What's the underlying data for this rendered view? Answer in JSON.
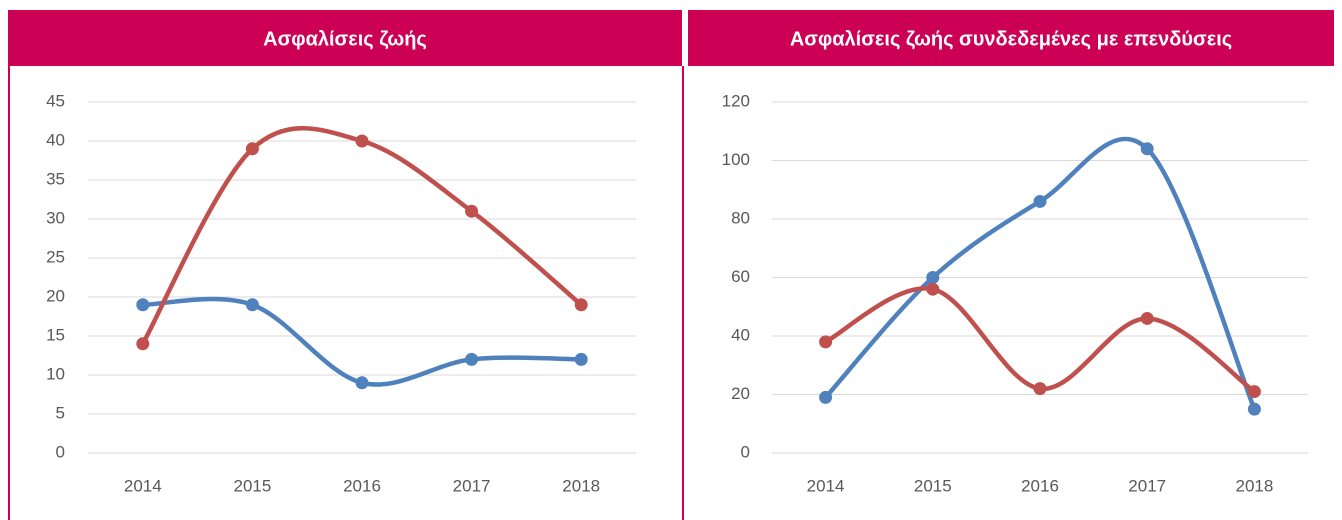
{
  "chart_data": [
    {
      "type": "line",
      "title": "Ασφαλίσεις ζωής",
      "categories": [
        "2014",
        "2015",
        "2016",
        "2017",
        "2018"
      ],
      "series": [
        {
          "color": "#4f81bd",
          "values": [
            19,
            19,
            9,
            12,
            12
          ]
        },
        {
          "color": "#c0504d",
          "values": [
            14,
            39,
            40,
            31,
            19
          ]
        }
      ],
      "ylim": [
        0,
        45
      ],
      "yticks": [
        0,
        5,
        10,
        15,
        20,
        25,
        30,
        35,
        40,
        45
      ],
      "grid": true,
      "smooth": true
    },
    {
      "type": "line",
      "title": "Ασφαλίσεις ζωής συνδεδεμένες με επενδύσεις",
      "categories": [
        "2014",
        "2015",
        "2016",
        "2017",
        "2018"
      ],
      "series": [
        {
          "color": "#4f81bd",
          "values": [
            19,
            60,
            86,
            104,
            15
          ]
        },
        {
          "color": "#c0504d",
          "values": [
            38,
            56,
            22,
            46,
            21
          ]
        }
      ],
      "ylim": [
        0,
        120
      ],
      "yticks": [
        0,
        20,
        40,
        60,
        80,
        100,
        120
      ],
      "grid": true,
      "smooth": true
    }
  ]
}
